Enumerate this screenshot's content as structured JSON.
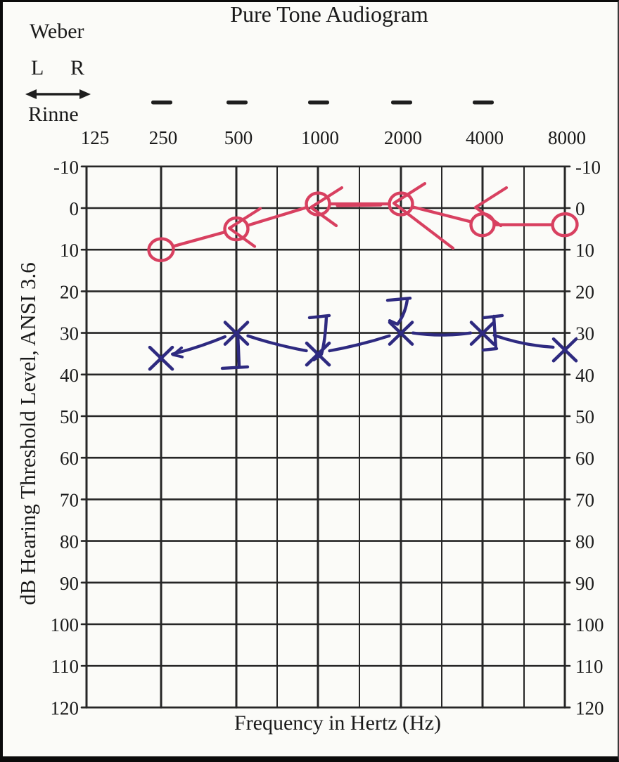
{
  "title": "Pure Tone Audiogram",
  "weber": {
    "label": "Weber",
    "left": "L",
    "right": "R"
  },
  "rinne": {
    "label": "Rinne",
    "negative_marks_at_hz": [
      250,
      500,
      1000,
      2000,
      4000
    ]
  },
  "x_axis": {
    "label": "Frequency in Hertz (Hz)",
    "tick_labels": [
      "125",
      "250",
      "500",
      "1000",
      "2000",
      "4000",
      "8000"
    ],
    "tick_values_hz": [
      125,
      250,
      500,
      1000,
      2000,
      4000,
      8000
    ]
  },
  "y_axis": {
    "label": "dB Hearing Threshold Level, ANSI 3.6",
    "min": -10,
    "max": 120,
    "step": 10,
    "tick_labels": [
      "-10",
      "0",
      "10",
      "20",
      "30",
      "40",
      "50",
      "60",
      "70",
      "80",
      "90",
      "100",
      "110",
      "120"
    ]
  },
  "colors": {
    "ink": "#262626",
    "red_pen": "#d84060",
    "blue_pen": "#2e2a80",
    "paper": "#fbfbf8"
  },
  "chart_data": {
    "type": "line",
    "x_frequencies_hz": [
      250,
      500,
      1000,
      2000,
      4000,
      8000
    ],
    "series": [
      {
        "name": "red-circles-air-conduction",
        "symbol": "O",
        "color": "#d84060",
        "values": [
          10,
          5,
          -1,
          -1,
          4,
          4
        ]
      },
      {
        "name": "blue-crosses-air-conduction",
        "symbol": "X",
        "color": "#2e2a80",
        "values": [
          36,
          30,
          35,
          30,
          30,
          34
        ]
      }
    ],
    "unconnected_marks": [
      {
        "name": "red-arrow-marks",
        "symbol": "<",
        "color": "#d84060",
        "points": [
          {
            "hz": 500,
            "db": 5,
            "glyph": "arrow"
          },
          {
            "hz": 1000,
            "db": 0,
            "glyph": "arrow"
          },
          {
            "hz": 2000,
            "db": -1,
            "glyph": "arrow-long-tail"
          },
          {
            "hz": 4000,
            "db": 0,
            "glyph": "arrow"
          }
        ]
      },
      {
        "name": "blue-bracket-marks",
        "symbol": "]",
        "color": "#2e2a80",
        "points": [
          {
            "hz": 500,
            "db": 38,
            "glyph": "stem-foot"
          },
          {
            "hz": 1000,
            "db": 26,
            "glyph": "bar-stem"
          },
          {
            "hz": 2000,
            "db": 22,
            "glyph": "bar-stem-hook"
          },
          {
            "hz": 4000,
            "db": 26,
            "glyph": "bracket"
          }
        ]
      }
    ],
    "ylim": [
      -10,
      120
    ],
    "grid": true,
    "interoctave_lines_hz": [
      750,
      1500,
      3000,
      6000
    ],
    "title": "Pure Tone Audiogram",
    "xlabel": "Frequency in Hertz (Hz)",
    "ylabel": "dB Hearing Threshold Level, ANSI 3.6"
  }
}
